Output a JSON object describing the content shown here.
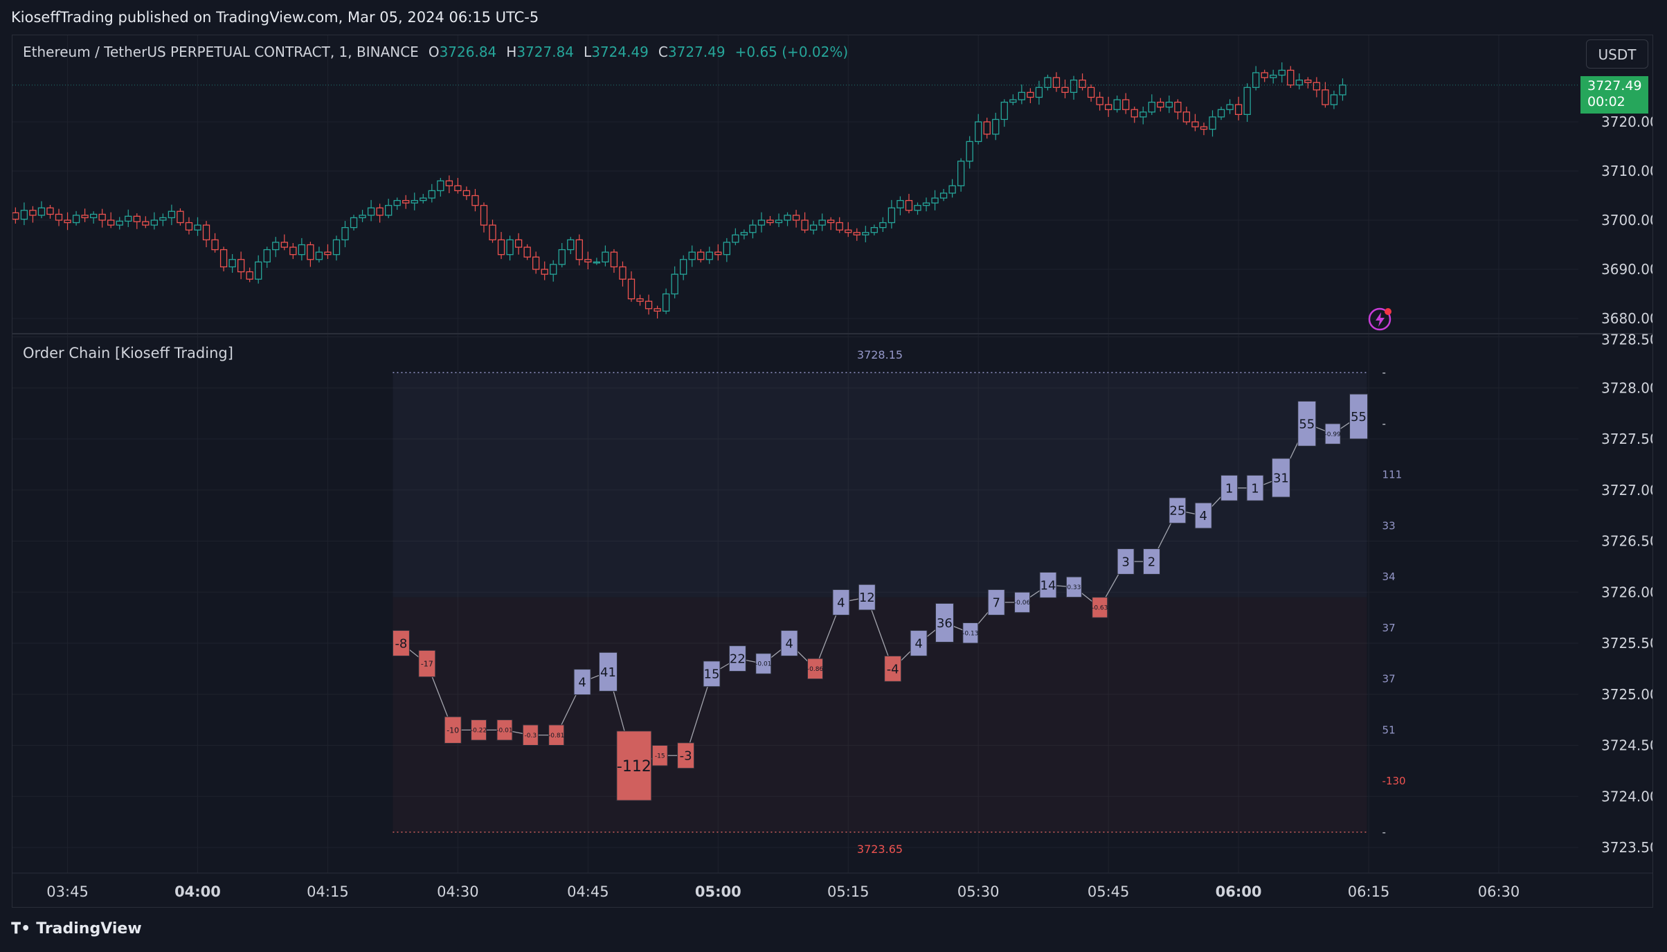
{
  "header": {
    "publish_text": "KioseffTrading published on TradingView.com, Mar 05, 2024 06:15 UTC-5"
  },
  "legend": {
    "symbol": "Ethereum / TetherUS PERPETUAL CONTRACT, 1, BINANCE",
    "o_label": "O",
    "o_value": "3726.84",
    "h_label": "H",
    "h_value": "3727.84",
    "l_label": "L",
    "l_value": "3724.49",
    "c_label": "C",
    "c_value": "3727.49",
    "change": "+0.65 (+0.02%)"
  },
  "currency_button": "USDT",
  "last_price_tag": {
    "price": "3727.49",
    "countdown": "00:02"
  },
  "indicator": {
    "title": "Order Chain [Kioseff Trading]"
  },
  "footer": {
    "logo_text": "TradingView"
  },
  "colors": {
    "background": "#131722",
    "up": "#26a69a",
    "down": "#ef5350",
    "node_positive": "#9598c9",
    "node_negative": "#d0605e",
    "price_tag": "#26a65b",
    "alert": "#c83dd8"
  },
  "chart_data": [
    {
      "type": "candlestick",
      "title": "Ethereum / TetherUS PERPETUAL CONTRACT, 1, BINANCE",
      "interval": "1 minute",
      "y_ticks": [
        "3680.00",
        "3690.00",
        "3700.00",
        "3710.00",
        "3720.00"
      ],
      "ylim": [
        3678,
        3730
      ],
      "time_ticks": [
        {
          "t": -15,
          "label": "03:45",
          "bold": false
        },
        {
          "t": 0,
          "label": "04:00",
          "bold": true
        },
        {
          "t": 15,
          "label": "04:15",
          "bold": false
        },
        {
          "t": 30,
          "label": "04:30",
          "bold": false
        },
        {
          "t": 45,
          "label": "04:45",
          "bold": false
        },
        {
          "t": 60,
          "label": "05:00",
          "bold": true
        },
        {
          "t": 75,
          "label": "05:15",
          "bold": false
        },
        {
          "t": 90,
          "label": "05:30",
          "bold": false
        },
        {
          "t": 105,
          "label": "05:45",
          "bold": false
        },
        {
          "t": 120,
          "label": "06:00",
          "bold": true
        },
        {
          "t": 135,
          "label": "06:15",
          "bold": false
        },
        {
          "t": 150,
          "label": "06:30",
          "bold": false
        }
      ],
      "x_start": "03:38",
      "closes": [
        3701.5,
        3700.2,
        3702.0,
        3701.0,
        3702.5,
        3701.2,
        3700.0,
        3699.5,
        3701.0,
        3700.5,
        3701.2,
        3700.0,
        3699.0,
        3699.8,
        3700.8,
        3699.7,
        3699.0,
        3700.0,
        3700.5,
        3701.8,
        3699.5,
        3698.0,
        3699.0,
        3696.0,
        3694.0,
        3690.5,
        3692.0,
        3689.5,
        3688.0,
        3691.5,
        3694.0,
        3695.5,
        3694.5,
        3693.0,
        3695.0,
        3692.0,
        3693.5,
        3693.0,
        3696.0,
        3698.5,
        3700.5,
        3701.0,
        3702.5,
        3701.0,
        3703.0,
        3704.0,
        3703.5,
        3704.0,
        3704.5,
        3706.0,
        3708.0,
        3707.0,
        3706.0,
        3705.0,
        3703.0,
        3699.0,
        3696.0,
        3693.0,
        3696.0,
        3694.5,
        3692.5,
        3690.0,
        3689.0,
        3691.0,
        3694.0,
        3696.0,
        3692.0,
        3691.5,
        3691.5,
        3693.5,
        3690.5,
        3688.0,
        3684.0,
        3683.5,
        3682.0,
        3681.5,
        3685.0,
        3689.0,
        3692.0,
        3693.5,
        3692.0,
        3693.5,
        3693.0,
        3695.5,
        3697.0,
        3697.5,
        3699.0,
        3700.0,
        3699.5,
        3700.0,
        3701.0,
        3700.0,
        3698.0,
        3699.0,
        3700.0,
        3699.5,
        3698.0,
        3697.5,
        3697.0,
        3697.5,
        3698.5,
        3699.5,
        3702.5,
        3704.0,
        3702.0,
        3703.0,
        3703.5,
        3704.5,
        3705.5,
        3707.0,
        3712.0,
        3716.0,
        3720.0,
        3717.5,
        3720.5,
        3724.0,
        3724.5,
        3726.0,
        3725.0,
        3727.0,
        3729.0,
        3727.0,
        3726.0,
        3728.5,
        3727.0,
        3725.0,
        3723.5,
        3722.5,
        3724.5,
        3722.5,
        3721.0,
        3722.0,
        3724.0,
        3723.0,
        3724.0,
        3722.0,
        3720.0,
        3719.0,
        3718.5,
        3721.0,
        3722.5,
        3723.5,
        3721.5,
        3727.0,
        3730.0,
        3729.0,
        3729.5,
        3730.5,
        3727.5,
        3728.5,
        3728.0,
        3726.5,
        3723.5,
        3725.5,
        3727.49
      ],
      "last_price": 3727.49
    },
    {
      "type": "line",
      "title": "Order Chain [Kioseff Trading]",
      "y_ticks": [
        "3723.50",
        "3724.00",
        "3724.50",
        "3725.00",
        "3725.50",
        "3726.00",
        "3726.50",
        "3727.00",
        "3727.50",
        "3728.00",
        "3728.50"
      ],
      "ylim": [
        3723.35,
        3728.5
      ],
      "high": "3728.15",
      "low": "3723.65",
      "t_range": [
        22.5,
        134.8
      ],
      "nodes": [
        {
          "price": 3725.5,
          "label": "-8",
          "size": "m",
          "sign": "neg"
        },
        {
          "price": 3725.3,
          "label": "-17",
          "size": "s",
          "sign": "neg"
        },
        {
          "price": 3724.65,
          "label": "-10",
          "size": "s",
          "sign": "neg"
        },
        {
          "price": 3724.65,
          "label": "-0.22",
          "size": "xs",
          "sign": "neg"
        },
        {
          "price": 3724.65,
          "label": "-0.01",
          "size": "xs",
          "sign": "neg"
        },
        {
          "price": 3724.6,
          "label": "-0.3",
          "size": "xs",
          "sign": "neg"
        },
        {
          "price": 3724.6,
          "label": "-0.81",
          "size": "xs",
          "sign": "neg"
        },
        {
          "price": 3725.12,
          "label": "4",
          "size": "m",
          "sign": "pos"
        },
        {
          "price": 3725.22,
          "label": "41",
          "size": "l",
          "sign": "pos"
        },
        {
          "price": 3724.3,
          "label": "-112",
          "size": "xl",
          "sign": "neg"
        },
        {
          "price": 3724.4,
          "label": "-15",
          "size": "xs",
          "sign": "neg"
        },
        {
          "price": 3724.4,
          "label": "-3",
          "size": "m",
          "sign": "neg"
        },
        {
          "price": 3725.2,
          "label": "15",
          "size": "m",
          "sign": "pos"
        },
        {
          "price": 3725.35,
          "label": "22",
          "size": "m",
          "sign": "pos"
        },
        {
          "price": 3725.3,
          "label": "-0.01",
          "size": "xs",
          "sign": "pos"
        },
        {
          "price": 3725.5,
          "label": "4",
          "size": "m",
          "sign": "pos"
        },
        {
          "price": 3725.25,
          "label": "-0.86",
          "size": "xs",
          "sign": "neg"
        },
        {
          "price": 3725.9,
          "label": "4",
          "size": "m",
          "sign": "pos"
        },
        {
          "price": 3725.95,
          "label": "12",
          "size": "m",
          "sign": "pos"
        },
        {
          "price": 3725.25,
          "label": "-4",
          "size": "m",
          "sign": "neg"
        },
        {
          "price": 3725.5,
          "label": "4",
          "size": "m",
          "sign": "pos"
        },
        {
          "price": 3725.7,
          "label": "36",
          "size": "l",
          "sign": "pos"
        },
        {
          "price": 3725.6,
          "label": "-0.13",
          "size": "xs",
          "sign": "pos"
        },
        {
          "price": 3725.9,
          "label": "7",
          "size": "m",
          "sign": "pos"
        },
        {
          "price": 3725.9,
          "label": "-0.06",
          "size": "xs",
          "sign": "pos"
        },
        {
          "price": 3726.07,
          "label": "14",
          "size": "m",
          "sign": "pos"
        },
        {
          "price": 3726.05,
          "label": "0.33",
          "size": "xs",
          "sign": "pos"
        },
        {
          "price": 3725.85,
          "label": "-0.63",
          "size": "xs",
          "sign": "neg"
        },
        {
          "price": 3726.3,
          "label": "3",
          "size": "m",
          "sign": "pos"
        },
        {
          "price": 3726.3,
          "label": "2",
          "size": "m",
          "sign": "pos"
        },
        {
          "price": 3726.8,
          "label": "25",
          "size": "m",
          "sign": "pos"
        },
        {
          "price": 3726.75,
          "label": "4",
          "size": "m",
          "sign": "pos"
        },
        {
          "price": 3727.02,
          "label": "1",
          "size": "m",
          "sign": "pos"
        },
        {
          "price": 3727.02,
          "label": "1",
          "size": "m",
          "sign": "pos"
        },
        {
          "price": 3727.12,
          "label": "31",
          "size": "l",
          "sign": "pos"
        },
        {
          "price": 3727.65,
          "label": "55",
          "size": "xl2",
          "sign": "pos"
        },
        {
          "price": 3727.55,
          "label": "-0.99",
          "size": "xs",
          "sign": "pos"
        },
        {
          "price": 3727.72,
          "label": "55",
          "size": "xl2",
          "sign": "pos"
        }
      ],
      "right_labels": [
        {
          "price": 3728.15,
          "label": "-",
          "sign": "neutral"
        },
        {
          "price": 3727.65,
          "label": "-",
          "sign": "neutral"
        },
        {
          "price": 3727.15,
          "label": "111",
          "sign": "pos"
        },
        {
          "price": 3726.65,
          "label": "33",
          "sign": "pos"
        },
        {
          "price": 3726.15,
          "label": "34",
          "sign": "pos"
        },
        {
          "price": 3725.65,
          "label": "37",
          "sign": "pos"
        },
        {
          "price": 3725.15,
          "label": "37",
          "sign": "pos"
        },
        {
          "price": 3724.65,
          "label": "51",
          "sign": "pos"
        },
        {
          "price": 3724.15,
          "label": "-130",
          "sign": "neg"
        },
        {
          "price": 3723.65,
          "label": "-",
          "sign": "neutral"
        }
      ]
    }
  ]
}
